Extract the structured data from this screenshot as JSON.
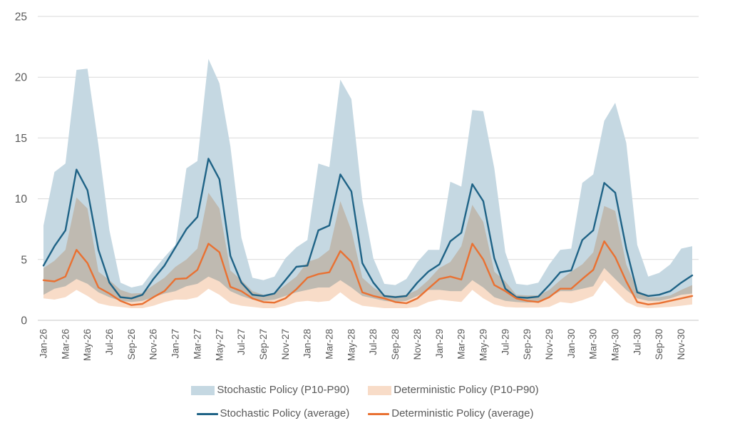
{
  "chart_data": {
    "type": "area",
    "title": "",
    "xlabel": "",
    "ylabel": "",
    "ylim": [
      0,
      25
    ],
    "y_ticks": [
      0,
      5,
      10,
      15,
      20,
      25
    ],
    "grid": true,
    "gridline_color": "#d9d9d9",
    "axis_line_color": "#c6c6c6",
    "tick_label_color": "#595959",
    "x_label_every_n_months": 2,
    "months": [
      "Jan-26",
      "Feb-26",
      "Mar-26",
      "Apr-26",
      "May-26",
      "Jun-26",
      "Jul-26",
      "Aug-26",
      "Sep-26",
      "Oct-26",
      "Nov-26",
      "Dec-26",
      "Jan-27",
      "Feb-27",
      "Mar-27",
      "Apr-27",
      "May-27",
      "Jun-27",
      "Jul-27",
      "Aug-27",
      "Sep-27",
      "Oct-27",
      "Nov-27",
      "Dec-27",
      "Jan-28",
      "Feb-28",
      "Mar-28",
      "Apr-28",
      "May-28",
      "Jun-28",
      "Jul-28",
      "Aug-28",
      "Sep-28",
      "Oct-28",
      "Nov-28",
      "Dec-28",
      "Jan-29",
      "Feb-29",
      "Mar-29",
      "Apr-29",
      "May-29",
      "Jun-29",
      "Jul-29",
      "Aug-29",
      "Sep-29",
      "Oct-29",
      "Nov-29",
      "Dec-29",
      "Jan-30",
      "Feb-30",
      "Mar-30",
      "Apr-30",
      "May-30",
      "Jun-30",
      "Jul-30",
      "Aug-30",
      "Sep-30",
      "Oct-30",
      "Nov-30",
      "Dec-30"
    ],
    "series": [
      {
        "name": "Stochastic Policy (P10-P90)",
        "type": "band",
        "color": "#c5d8e2",
        "upper": [
          7.8,
          12.2,
          12.9,
          20.6,
          20.7,
          14.4,
          7.4,
          3.1,
          2.7,
          2.9,
          4.1,
          5.2,
          6.2,
          12.5,
          13.1,
          21.5,
          19.5,
          14.3,
          6.8,
          3.5,
          3.3,
          3.6,
          5.1,
          6.0,
          6.6,
          12.9,
          12.6,
          19.8,
          18.2,
          9.9,
          5.1,
          3.0,
          2.9,
          3.4,
          4.8,
          5.8,
          5.8,
          11.4,
          11.0,
          17.3,
          17.2,
          12.5,
          5.6,
          3.0,
          2.9,
          3.1,
          4.6,
          5.8,
          5.9,
          11.3,
          12.0,
          16.4,
          17.9,
          14.6,
          6.2,
          3.6,
          3.9,
          4.6,
          5.9,
          6.1
        ],
        "lower": [
          2.1,
          2.6,
          2.8,
          3.4,
          3.0,
          2.3,
          1.9,
          1.6,
          1.5,
          1.6,
          1.9,
          2.2,
          2.4,
          2.8,
          3.0,
          3.6,
          3.2,
          2.4,
          2.0,
          1.7,
          1.6,
          1.7,
          2.0,
          2.3,
          2.5,
          2.7,
          2.7,
          3.3,
          2.7,
          2.0,
          1.8,
          1.6,
          1.5,
          1.6,
          2.0,
          2.5,
          2.5,
          2.4,
          2.4,
          3.3,
          2.7,
          1.9,
          1.6,
          1.5,
          1.45,
          1.5,
          1.9,
          2.4,
          2.4,
          2.6,
          2.8,
          4.3,
          3.4,
          2.5,
          1.8,
          1.6,
          1.6,
          1.8,
          2.1,
          2.2
        ]
      },
      {
        "name": "Deterministic Policy (P10-P90)",
        "type": "band",
        "color": "#f8dcc8",
        "upper": [
          4.3,
          4.9,
          5.8,
          10.1,
          9.2,
          4.0,
          3.3,
          2.5,
          2.2,
          2.25,
          2.9,
          3.5,
          4.4,
          5.0,
          5.9,
          10.5,
          9.2,
          4.1,
          3.3,
          2.4,
          2.1,
          2.2,
          2.9,
          3.6,
          4.8,
          5.1,
          5.8,
          9.8,
          7.4,
          3.5,
          2.7,
          2.1,
          2.0,
          2.1,
          2.5,
          3.3,
          4.3,
          4.8,
          6.1,
          9.5,
          8.1,
          4.0,
          3.2,
          2.1,
          2.05,
          2.05,
          2.5,
          3.3,
          4.0,
          4.6,
          5.6,
          9.4,
          9.0,
          4.6,
          2.5,
          1.9,
          1.9,
          2.05,
          2.5,
          2.9
        ],
        "lower": [
          1.8,
          1.7,
          1.9,
          2.5,
          2.0,
          1.4,
          1.2,
          1.1,
          1.0,
          1.0,
          1.2,
          1.5,
          1.7,
          1.7,
          1.9,
          2.6,
          2.1,
          1.4,
          1.2,
          1.1,
          1.0,
          1.0,
          1.2,
          1.5,
          1.6,
          1.5,
          1.6,
          2.3,
          1.6,
          1.2,
          1.1,
          1.0,
          1.0,
          1.0,
          1.1,
          1.5,
          1.7,
          1.6,
          1.5,
          2.5,
          1.8,
          1.3,
          1.1,
          1.05,
          1.05,
          1.05,
          1.1,
          1.5,
          1.4,
          1.65,
          2.0,
          3.3,
          2.4,
          1.5,
          1.1,
          1.0,
          1.05,
          1.1,
          1.2,
          1.3
        ]
      },
      {
        "name": "Stochastic Policy (average)",
        "type": "line",
        "color": "#1f6386",
        "values": [
          4.5,
          6.1,
          7.4,
          12.4,
          10.7,
          5.8,
          3.1,
          1.9,
          1.8,
          2.1,
          3.4,
          4.5,
          6.0,
          7.5,
          8.5,
          13.3,
          11.6,
          5.3,
          3.1,
          2.1,
          2.0,
          2.2,
          3.3,
          4.4,
          4.5,
          7.4,
          7.8,
          12.0,
          10.6,
          4.7,
          3.1,
          2.0,
          1.9,
          2.0,
          3.1,
          4.0,
          4.6,
          6.5,
          7.2,
          11.2,
          9.8,
          5.1,
          2.6,
          1.9,
          1.85,
          1.95,
          2.9,
          3.95,
          4.1,
          6.6,
          7.4,
          11.3,
          10.5,
          5.9,
          2.3,
          2.0,
          2.1,
          2.4,
          3.1,
          3.7
        ]
      },
      {
        "name": "Deterministic Policy (average)",
        "type": "line",
        "color": "#e97132",
        "values": [
          3.3,
          3.2,
          3.6,
          5.8,
          4.7,
          2.7,
          2.2,
          1.6,
          1.25,
          1.35,
          1.9,
          2.4,
          3.4,
          3.45,
          4.15,
          6.3,
          5.6,
          2.75,
          2.4,
          1.8,
          1.5,
          1.45,
          1.8,
          2.55,
          3.5,
          3.8,
          3.95,
          5.7,
          4.8,
          2.3,
          2.0,
          1.8,
          1.5,
          1.4,
          1.8,
          2.6,
          3.4,
          3.6,
          3.35,
          6.3,
          5.0,
          2.9,
          2.4,
          1.8,
          1.6,
          1.5,
          1.9,
          2.6,
          2.6,
          3.4,
          4.15,
          6.5,
          5.2,
          3.2,
          1.5,
          1.3,
          1.4,
          1.6,
          1.8,
          2.0
        ]
      }
    ],
    "legend": {
      "position": "bottom",
      "rows": [
        [
          0,
          1
        ],
        [
          2,
          3
        ]
      ]
    }
  }
}
